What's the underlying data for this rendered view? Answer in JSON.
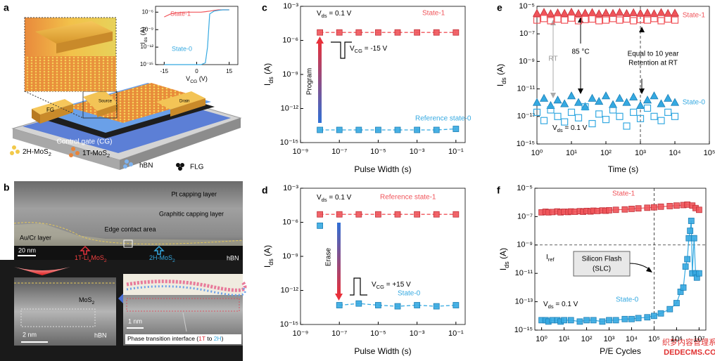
{
  "panel_labels": [
    "a",
    "b",
    "c",
    "d",
    "e",
    "f"
  ],
  "panel_a": {
    "two_h": [
      "2H-MoS",
      "2"
    ],
    "one_t": [
      "1T-MoS",
      "2"
    ],
    "hbn": "hBN",
    "flg": "FLG",
    "cg": "Control gate (CG)",
    "fg": "FG",
    "source": "Source",
    "drain": "Drain"
  },
  "panel_b": {
    "pt": "Pt capping layer",
    "graphitic": "Graphitic capping layer",
    "aucr": "Au/Cr layer",
    "edge": "Edge contact area",
    "scale1": "20 nm",
    "lixmos2": [
      "1T-Li",
      "x",
      "MoS",
      "2"
    ],
    "twoh": [
      "2H-MoS",
      "2"
    ],
    "hbn1": "hBN",
    "mos2": [
      "MoS",
      "2"
    ],
    "scale2": "2 nm",
    "hbn2": "hBN",
    "scale3": "1 nm",
    "interface": [
      "Phase transition interface (",
      "1T",
      " to ",
      "2H",
      ")"
    ]
  },
  "watermark": [
    "织梦内容管理系统",
    "DEDECMS.COM"
  ],
  "chart_data": [
    {
      "type": "line",
      "xscale": "linear",
      "yscale": "log",
      "xlabel": [
        "V",
        "CG",
        " (V)"
      ],
      "ylabel": [
        "I",
        "ds",
        " (A)"
      ],
      "xlim": [
        -19,
        19
      ],
      "xticks": [
        -15,
        0,
        15
      ],
      "ylim": [
        1e-15,
        1e-05
      ],
      "yticks": [
        {
          "value": 1e-15,
          "label": "10⁻¹⁵"
        },
        {
          "value": 1e-12,
          "label": "10⁻¹²"
        },
        {
          "value": 1e-09,
          "label": "10⁻⁹"
        },
        {
          "value": 1e-06,
          "label": "10⁻⁶"
        }
      ],
      "series": [
        {
          "name": "State-1",
          "color": "#f0545a",
          "line": "solid",
          "x": [
            -15,
            -12,
            -9,
            -6,
            -3,
            0,
            2,
            4,
            6,
            8,
            10,
            12,
            15
          ],
          "values": [
            1.5e-07,
            5e-07,
            8e-07,
            1e-06,
            1e-06,
            1e-06,
            1e-06,
            1.2e-06,
            1.5e-06,
            2e-06,
            2.5e-06,
            2.5e-06,
            2.5e-06
          ]
        },
        {
          "name": "State-0",
          "color": "#35a9e1",
          "line": "solid",
          "x": [
            -15,
            -12,
            -9,
            -6,
            -3,
            0,
            2,
            4,
            5,
            6,
            8,
            10,
            12,
            15
          ],
          "values": [
            1e-15,
            1e-15,
            1e-15,
            1e-15,
            1e-15,
            1e-15,
            1e-15,
            2e-15,
            1e-12,
            5e-07,
            1.5e-06,
            2e-06,
            2.5e-06,
            2.5e-06
          ]
        }
      ]
    },
    {
      "type": "scatter",
      "xscale": "log",
      "yscale": "log",
      "xlabel": "Pulse Width (s)",
      "ylabel": [
        "I",
        "ds",
        " (A)"
      ],
      "xlim": [
        1e-09,
        0.3
      ],
      "xticks": [
        {
          "value": 1e-09,
          "label": "10⁻⁹"
        },
        {
          "value": 1e-07,
          "label": "10⁻⁷"
        },
        {
          "value": 1e-05,
          "label": "10⁻⁵"
        },
        {
          "value": 0.001,
          "label": "10⁻³"
        },
        {
          "value": 0.1,
          "label": "10⁻¹"
        }
      ],
      "ylim": [
        1e-15,
        0.001
      ],
      "yticks": [
        {
          "value": 1e-15,
          "label": "10⁻¹⁵"
        },
        {
          "value": 1e-12,
          "label": "10⁻¹²"
        },
        {
          "value": 1e-09,
          "label": "10⁻⁹"
        },
        {
          "value": 1e-06,
          "label": "10⁻⁶"
        },
        {
          "value": 0.001,
          "label": "10⁻³"
        }
      ],
      "annotations": {
        "vds": [
          "V",
          "ds",
          " = 0.1 V"
        ],
        "vcg": [
          "V",
          "CG",
          " = -15 V"
        ],
        "arrow": "Program"
      },
      "series": [
        {
          "name": "State-1",
          "color": "#f0545a",
          "marker": "square",
          "line": "dashed",
          "x": [
            1e-08,
            1e-07,
            1e-06,
            1e-05,
            0.0001,
            0.001,
            0.01,
            0.1
          ],
          "values": [
            5e-06,
            5e-06,
            5e-06,
            5e-06,
            5e-06,
            5e-06,
            5e-06,
            5e-06
          ]
        },
        {
          "name": "Reference state-0",
          "color": "#35a9e1",
          "marker": "square",
          "line": "dashed",
          "x": [
            1e-08,
            1e-07,
            1e-06,
            1e-05,
            0.0001,
            0.001,
            0.01,
            0.1
          ],
          "values": [
            1.3e-14,
            1.3e-14,
            1.3e-14,
            1.3e-14,
            1.3e-14,
            1.3e-14,
            1.3e-14,
            1.6e-14
          ]
        }
      ]
    },
    {
      "type": "scatter",
      "xscale": "log",
      "yscale": "log",
      "xlabel": "Pulse Width (s)",
      "ylabel": [
        "I",
        "ds",
        " (A)"
      ],
      "xlim": [
        1e-09,
        0.3
      ],
      "xticks": [
        {
          "value": 1e-09,
          "label": "10⁻⁹"
        },
        {
          "value": 1e-07,
          "label": "10⁻⁷"
        },
        {
          "value": 1e-05,
          "label": "10⁻⁵"
        },
        {
          "value": 0.001,
          "label": "10⁻³"
        },
        {
          "value": 0.1,
          "label": "10⁻¹"
        }
      ],
      "ylim": [
        1e-15,
        0.001
      ],
      "yticks": [
        {
          "value": 1e-15,
          "label": "10⁻¹⁵"
        },
        {
          "value": 1e-12,
          "label": "10⁻¹²"
        },
        {
          "value": 1e-09,
          "label": "10⁻⁹"
        },
        {
          "value": 1e-06,
          "label": "10⁻⁶"
        },
        {
          "value": 0.001,
          "label": "10⁻³"
        }
      ],
      "annotations": {
        "vds": [
          "V",
          "ds",
          " = 0.1 V"
        ],
        "vcg": [
          "V",
          "CG",
          " = +15 V"
        ],
        "arrow": "Erase"
      },
      "series": [
        {
          "name": "Reference state-1",
          "color": "#f0545a",
          "marker": "square",
          "line": "dashed",
          "x": [
            1e-08,
            1e-07,
            1e-06,
            1e-05,
            0.0001,
            0.001,
            0.01,
            0.1
          ],
          "values": [
            5e-06,
            5e-06,
            5e-06,
            5e-06,
            5e-06,
            5e-06,
            5e-06,
            5e-06
          ]
        },
        {
          "name": "State-0",
          "color": "#35a9e1",
          "marker": "square",
          "line": "dashed",
          "x": [
            1e-07,
            1e-06,
            1e-05,
            0.0001,
            0.001,
            0.01,
            0.1
          ],
          "values": [
            5e-14,
            7e-14,
            5e-14,
            4e-14,
            5e-14,
            4e-14,
            5e-14
          ]
        },
        {
          "color": "#35a9e1",
          "marker": "square",
          "x": [
            1e-08
          ],
          "values": [
            5e-07
          ]
        }
      ]
    },
    {
      "type": "scatter",
      "xscale": "log",
      "yscale": "log",
      "xlabel": "Time (s)",
      "ylabel": [
        "I",
        "ds",
        " (A)"
      ],
      "xlim": [
        1,
        100000.0
      ],
      "xticks": [
        {
          "value": 1,
          "label": "10⁰"
        },
        {
          "value": 10,
          "label": "10¹"
        },
        {
          "value": 100,
          "label": "10²"
        },
        {
          "value": 1000,
          "label": "10³"
        },
        {
          "value": 10000,
          "label": "10⁴"
        },
        {
          "value": 100000,
          "label": "10⁵"
        }
      ],
      "ylim": [
        1e-15,
        1e-05
      ],
      "yticks": [
        {
          "value": 1e-15,
          "label": "10⁻¹⁵"
        },
        {
          "value": 1e-13,
          "label": "10⁻¹³"
        },
        {
          "value": 1e-11,
          "label": "10⁻¹¹"
        },
        {
          "value": 1e-09,
          "label": "10⁻⁹"
        },
        {
          "value": 1e-07,
          "label": "10⁻⁷"
        },
        {
          "value": 1e-05,
          "label": "10⁻⁵"
        }
      ],
      "vlines": [
        1000
      ],
      "annotations": {
        "vds": [
          "V",
          "ds",
          " = 0.1 V"
        ],
        "rt": "RT",
        "hot": "85 °C",
        "ret1": "Equal to 10 year",
        "ret2": "Retention at RT"
      },
      "series": [
        {
          "name": "State-1",
          "color": "#f0545a",
          "marker": "triangle",
          "x": [
            1,
            1.6,
            2.5,
            4,
            6.3,
            10,
            16,
            25,
            40,
            63,
            100,
            160,
            250,
            400,
            630,
            1000,
            1600,
            2500,
            4000,
            6300,
            10000
          ],
          "values": [
            3e-06,
            3.5e-06,
            2.8e-06,
            3.2e-06,
            3e-06,
            3.6e-06,
            2.9e-06,
            3.1e-06,
            3.4e-06,
            2.8e-06,
            3.2e-06,
            3e-06,
            3.5e-06,
            2.9e-06,
            3.3e-06,
            3e-06,
            3.2e-06,
            2.8e-06,
            3.4e-06,
            3e-06,
            3.1e-06
          ]
        },
        {
          "color": "#f0545a",
          "marker": "square-open",
          "x": [
            1,
            1.6,
            2.5,
            4,
            6.3,
            10,
            16,
            25,
            40,
            63,
            100,
            160,
            250,
            400,
            630,
            1000,
            1600,
            2500,
            4000,
            6300,
            10000
          ],
          "values": [
            1e-06,
            1.3e-06,
            9e-07,
            1.2e-06,
            1e-06,
            1.4e-06,
            9e-07,
            1.1e-06,
            1.2e-06,
            9e-07,
            1e-06,
            1.3e-06,
            1e-06,
            1.2e-06,
            9e-07,
            1.1e-06,
            1e-06,
            1.3e-06,
            9e-07,
            1.2e-06,
            1e-06
          ]
        },
        {
          "name": "State-0",
          "color": "#35a9e1",
          "marker": "triangle",
          "x": [
            1,
            1.6,
            2.5,
            4,
            6.3,
            10,
            16,
            25,
            40,
            63,
            100,
            160,
            250,
            400,
            630,
            1000,
            1600,
            2500,
            4000,
            6300,
            10000
          ],
          "values": [
            1e-12,
            2e-12,
            6e-13,
            1.5e-12,
            8e-13,
            3e-12,
            1e-12,
            5e-13,
            2e-12,
            1.2e-12,
            3e-12,
            7e-13,
            2e-12,
            1e-12,
            2.5e-12,
            6e-13,
            1.5e-12,
            3e-12,
            8e-13,
            2e-12,
            1e-12
          ]
        },
        {
          "color": "#35a9e1",
          "marker": "square-open",
          "x": [
            1,
            1.6,
            2.5,
            4,
            6.3,
            10,
            16,
            25,
            40,
            63,
            100,
            160,
            250,
            400,
            630,
            1000,
            1600,
            2500,
            4000,
            6300,
            10000
          ],
          "values": [
            2e-13,
            5e-14,
            3e-13,
            1e-13,
            4e-14,
            2e-13,
            8e-14,
            5e-13,
            3e-14,
            1.5e-13,
            6e-14,
            3e-13,
            1e-13,
            2e-14,
            2e-13,
            7e-14,
            4e-13,
            1e-13,
            5e-14,
            2e-13,
            1e-13
          ]
        }
      ]
    },
    {
      "type": "scatter",
      "xscale": "log",
      "yscale": "log",
      "xlabel": "P/E Cycles",
      "ylabel": [
        "I",
        "ds",
        " (A)"
      ],
      "xlim": [
        0.5,
        20000000.0
      ],
      "xticks": [
        {
          "value": 1,
          "label": "10⁰"
        },
        {
          "value": 10,
          "label": "10¹"
        },
        {
          "value": 100,
          "label": "10²"
        },
        {
          "value": 1000,
          "label": "10³"
        },
        {
          "value": 10000,
          "label": "10⁴"
        },
        {
          "value": 100000,
          "label": "10⁵"
        },
        {
          "value": 1000000,
          "label": "10⁶"
        },
        {
          "value": 10000000,
          "label": "10⁷"
        }
      ],
      "ylim": [
        1e-15,
        1e-05
      ],
      "yticks": [
        {
          "value": 1e-15,
          "label": "10⁻¹⁵"
        },
        {
          "value": 1e-13,
          "label": "10⁻¹³"
        },
        {
          "value": 1e-11,
          "label": "10⁻¹¹"
        },
        {
          "value": 1e-09,
          "label": "10⁻⁹"
        },
        {
          "value": 1e-07,
          "label": "10⁻⁷"
        },
        {
          "value": 1e-05,
          "label": "10⁻⁵"
        }
      ],
      "hlines": [
        1e-09
      ],
      "vlines": [
        100000
      ],
      "annotations": {
        "vds": [
          "V",
          "ds",
          " = 0.1 V"
        ],
        "iref": [
          "I",
          "ref"
        ],
        "flash1": "Silicon Flash",
        "flash2": "(SLC)"
      },
      "series": [
        {
          "name": "State-1",
          "color": "#f0545a",
          "marker": "square",
          "line": "solid",
          "x": [
            1,
            1.5,
            2,
            3,
            5,
            7,
            10,
            15,
            20,
            30,
            50,
            70,
            100,
            150,
            200,
            300,
            500,
            700,
            1000,
            2000,
            5000,
            10000,
            20000,
            50000,
            100000,
            200000,
            500000,
            1000000,
            2000000,
            3000000,
            5000000,
            7000000,
            10000000
          ],
          "values": [
            2e-07,
            2.2e-07,
            2e-07,
            2.1e-07,
            2.3e-07,
            2e-07,
            2.2e-07,
            2.1e-07,
            2.3e-07,
            2.2e-07,
            2.4e-07,
            2.2e-07,
            2.5e-07,
            2.3e-07,
            2.6e-07,
            2.5e-07,
            2.7e-07,
            2.6e-07,
            2.8e-07,
            3e-07,
            3.2e-07,
            3.5e-07,
            3.8e-07,
            4.2e-07,
            4.5e-07,
            5e-07,
            5.5e-07,
            6e-07,
            6.5e-07,
            7e-07,
            6e-07,
            4e-07,
            3e-07
          ]
        },
        {
          "name": "State-0",
          "color": "#35a9e1",
          "marker": "square",
          "line": "solid",
          "x": [
            1,
            1.5,
            2,
            3,
            5,
            7,
            10,
            20,
            50,
            100,
            200,
            500,
            1000,
            2000,
            5000,
            10000,
            20000,
            50000,
            100000,
            200000,
            500000,
            1000000,
            1500000,
            2000000,
            2500000,
            3000000,
            3500000,
            4000000,
            4500000,
            5000000,
            6000000,
            7000000,
            8000000,
            10000000
          ],
          "values": [
            5e-15,
            5e-15,
            4e-15,
            5e-15,
            5e-15,
            4e-15,
            5e-15,
            5e-15,
            4e-15,
            5e-15,
            5e-15,
            4e-15,
            5e-15,
            5e-15,
            6e-15,
            6e-15,
            7e-15,
            8e-15,
            1e-14,
            1.5e-14,
            3e-14,
            8e-14,
            5e-13,
            1e-12,
            3e-11,
            1e-10,
            3e-09,
            1e-08,
            5e-08,
            1e-11,
            3e-09,
            1e-11,
            5e-12,
            1e-11
          ]
        }
      ]
    }
  ]
}
